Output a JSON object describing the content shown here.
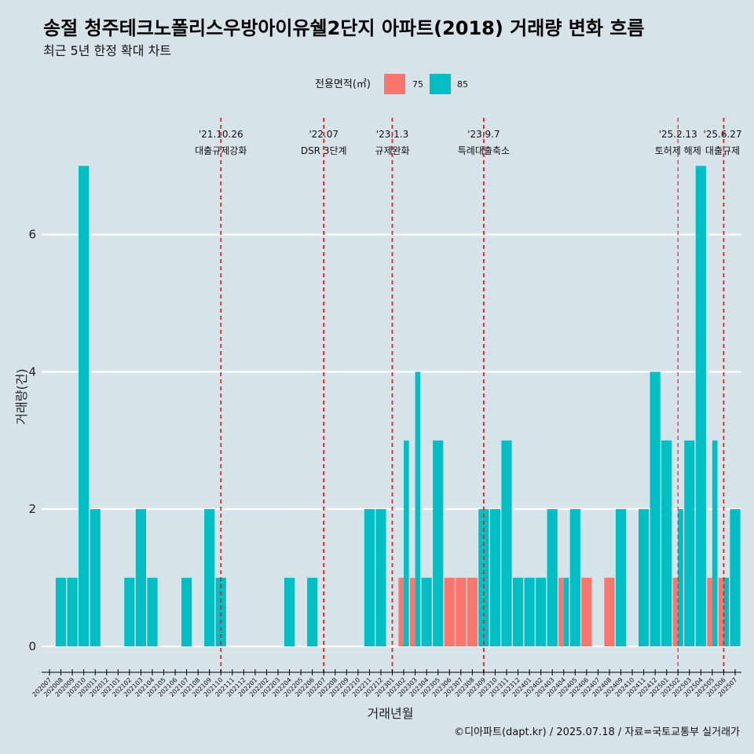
{
  "chart_data": {
    "type": "bar",
    "title": "송절 청주테크노폴리스우방아이유쉘2단지 아파트(2018) 거래량 변화 흐름",
    "subtitle": "최근 5년 한정 확대 차트",
    "xlabel": "거래년월",
    "ylabel": "거래량(건)",
    "ylim": [
      0,
      7
    ],
    "yticks": [
      "0",
      "2",
      "4",
      "6"
    ],
    "legend": {
      "title": "전용면적(㎡)",
      "position": "top",
      "entries": [
        "75",
        "85"
      ]
    },
    "colors": {
      "75": "#f8766d",
      "85": "#00bfc4"
    },
    "categories": [
      "202007",
      "202008",
      "202009",
      "202010",
      "202011",
      "202012",
      "202101",
      "202102",
      "202103",
      "202104",
      "202105",
      "202106",
      "202107",
      "202108",
      "202109",
      "202110",
      "202111",
      "202112",
      "202201",
      "202202",
      "202203",
      "202204",
      "202205",
      "202206",
      "202207",
      "202208",
      "202209",
      "202210",
      "202211",
      "202212",
      "202301",
      "202302",
      "202303",
      "202304",
      "202305",
      "202306",
      "202307",
      "202308",
      "202309",
      "202310",
      "202311",
      "202312",
      "202401",
      "202402",
      "202403",
      "202404",
      "202405",
      "202406",
      "202407",
      "202408",
      "202409",
      "202410",
      "202411",
      "202412",
      "202501",
      "202502",
      "202503",
      "202504",
      "202505",
      "202506",
      "202507"
    ],
    "series": [
      {
        "name": "75",
        "values": [
          0,
          0,
          0,
          0,
          0,
          0,
          0,
          0,
          0,
          0,
          0,
          0,
          0,
          0,
          0,
          0,
          0,
          0,
          0,
          0,
          0,
          0,
          0,
          0,
          0,
          0,
          0,
          0,
          0,
          0,
          0,
          1,
          1,
          0,
          0,
          1,
          1,
          1,
          0,
          0,
          0,
          0,
          0,
          0,
          0,
          1,
          0,
          1,
          0,
          1,
          0,
          0,
          0,
          0,
          0,
          1,
          0,
          0,
          1,
          1,
          0
        ]
      },
      {
        "name": "85",
        "values": [
          0,
          1,
          1,
          7,
          2,
          0,
          0,
          1,
          2,
          1,
          0,
          0,
          1,
          0,
          2,
          1,
          0,
          0,
          0,
          0,
          0,
          1,
          0,
          1,
          0,
          0,
          0,
          0,
          2,
          2,
          0,
          3,
          4,
          1,
          3,
          0,
          0,
          0,
          2,
          2,
          3,
          1,
          1,
          1,
          2,
          1,
          2,
          0,
          0,
          0,
          2,
          0,
          2,
          4,
          3,
          2,
          3,
          7,
          3,
          1,
          2
        ]
      }
    ],
    "bar_layout": "dodge",
    "grid": true,
    "annotations": [
      {
        "at": "202110",
        "date": "'21.10.26",
        "label": "대출규제강화"
      },
      {
        "at": "202207",
        "date": "'22.07",
        "label": "DSR 3단계"
      },
      {
        "at": "202301",
        "date": "'23.1.3",
        "label": "규제완화"
      },
      {
        "at": "202309",
        "date": "'23.9.7",
        "label": "특례대출축소"
      },
      {
        "at": "202502",
        "date": "'25.2.13",
        "label": "토허제 해제"
      },
      {
        "at": "202506",
        "date": "'25.6.27",
        "label": "대출규제"
      }
    ],
    "caption": "©디아파트(dapt.kr) / 2025.07.18 / 자료=국토교통부 실거래가"
  }
}
